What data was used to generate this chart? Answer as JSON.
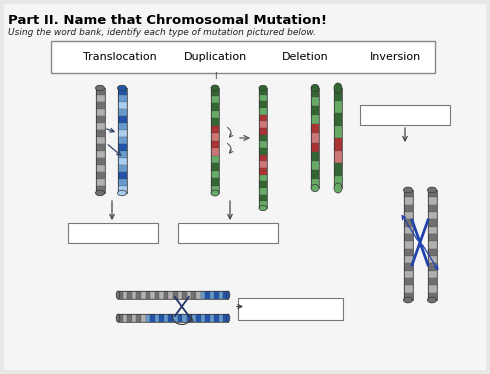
{
  "title": "Part II. Name that Chromosomal Mutation!",
  "subtitle": "Using the word bank, identify each type of mutation pictured below.",
  "word_bank": [
    "Translocation",
    "Duplication",
    "Deletion",
    "Inversion"
  ],
  "bg_color": "#e8e8e8",
  "page_bg": "#f0f0f0",
  "word_bank_box_color": "#ffffff",
  "answer_box_color": "#ffffff",
  "fig_width": 4.9,
  "fig_height": 3.74,
  "dpi": 100,
  "gray1": "#707070",
  "gray2": "#b0b0b0",
  "blue1": "#2255aa",
  "blue2": "#6699cc",
  "blue3": "#aaccee",
  "green1": "#336633",
  "green2": "#66aa66",
  "green3": "#aaddaa",
  "red1": "#aa3333",
  "red2": "#cc7777",
  "red3": "#eeaaaa"
}
